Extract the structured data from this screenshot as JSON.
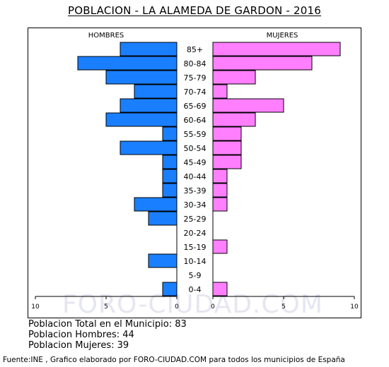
{
  "title": "POBLACION - LA ALAMEDA DE GARDON - 2016",
  "watermark": "FORO-CIUDAD.COM",
  "stats": {
    "total": "Poblacion Total en el Municipio: 83",
    "hombres": "Poblacion Hombres: 44",
    "mujeres": "Poblacion Mujeres: 39"
  },
  "footer": "Fuente:INE , Grafico elaborado por FORO-CIUDAD.COM para todos los municipios de España",
  "colors": {
    "hombres": "#1a7fff",
    "mujeres": "#ff7fff"
  },
  "chart_data": {
    "type": "bar",
    "orientation": "horizontal-pyramid",
    "categories": [
      "85+",
      "80-84",
      "75-79",
      "70-74",
      "65-69",
      "60-64",
      "55-59",
      "50-54",
      "45-49",
      "40-44",
      "35-39",
      "30-34",
      "25-29",
      "20-24",
      "15-19",
      "10-14",
      "5-9",
      "0-4"
    ],
    "series": [
      {
        "name": "HOMBRES",
        "values": [
          4,
          7,
          5,
          3,
          4,
          5,
          1,
          4,
          1,
          1,
          1,
          3,
          2,
          0,
          0,
          2,
          0,
          1
        ]
      },
      {
        "name": "MUJERES",
        "values": [
          9,
          7,
          3,
          1,
          5,
          3,
          2,
          2,
          2,
          1,
          1,
          1,
          0,
          0,
          1,
          0,
          0,
          1
        ]
      }
    ],
    "left_ticks": [
      "10",
      "5",
      "0"
    ],
    "right_ticks": [
      "0",
      "5",
      "10"
    ],
    "xlim": [
      0,
      10
    ]
  }
}
